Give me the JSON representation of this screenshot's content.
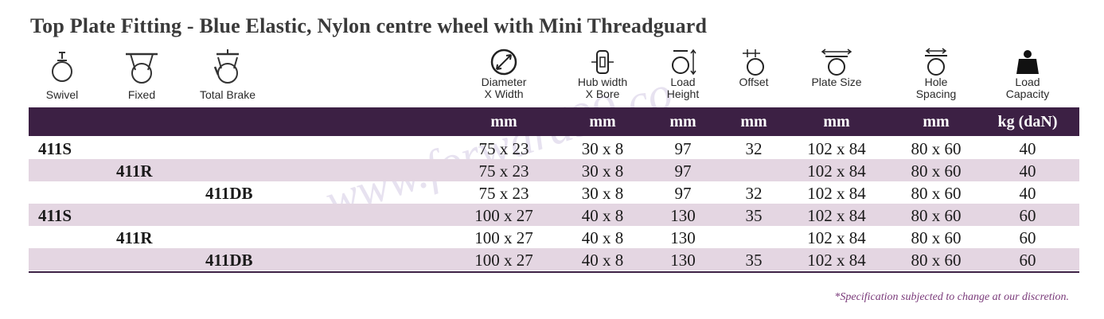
{
  "title": "Top Plate Fitting - Blue Elastic, Nylon centre wheel with Mini Threadguard",
  "type_icons": [
    {
      "label": "Swivel",
      "icon": "swivel-castor-icon"
    },
    {
      "label": "Fixed",
      "icon": "fixed-castor-icon"
    },
    {
      "label": "Total Brake",
      "icon": "total-brake-castor-icon"
    }
  ],
  "spec_headers": [
    {
      "line1": "Diameter",
      "line2": "X Width",
      "icon": "diameter-icon"
    },
    {
      "line1": "Hub width",
      "line2": "X Bore",
      "icon": "hub-width-icon"
    },
    {
      "line1": "Load",
      "line2": "Height",
      "icon": "load-height-icon"
    },
    {
      "line1": "Offset",
      "line2": "",
      "icon": "offset-icon"
    },
    {
      "line1": "Plate Size",
      "line2": "",
      "icon": "plate-size-icon"
    },
    {
      "line1": "Hole",
      "line2": "Spacing",
      "icon": "hole-spacing-icon"
    },
    {
      "line1": "Load",
      "line2": "Capacity",
      "icon": "weight-icon"
    }
  ],
  "units": [
    "mm",
    "mm",
    "mm",
    "mm",
    "mm",
    "mm",
    "kg (daN)"
  ],
  "rows": [
    {
      "code": "411S",
      "type": 0,
      "diameter": "75 x 23",
      "hub": "30 x 8",
      "height": "97",
      "offset": "32",
      "plate": "102 x 84",
      "hole": "80 x 60",
      "capacity": "40"
    },
    {
      "code": "411R",
      "type": 1,
      "diameter": "75 x 23",
      "hub": "30 x 8",
      "height": "97",
      "offset": "",
      "plate": "102 x 84",
      "hole": "80 x 60",
      "capacity": "40"
    },
    {
      "code": "411DB",
      "type": 2,
      "diameter": "75 x 23",
      "hub": "30 x 8",
      "height": "97",
      "offset": "32",
      "plate": "102 x 84",
      "hole": "80 x 60",
      "capacity": "40"
    },
    {
      "code": "411S",
      "type": 0,
      "diameter": "100 x 27",
      "hub": "40 x 8",
      "height": "130",
      "offset": "35",
      "plate": "102 x 84",
      "hole": "80 x 60",
      "capacity": "60"
    },
    {
      "code": "411R",
      "type": 1,
      "diameter": "100 x 27",
      "hub": "40 x 8",
      "height": "130",
      "offset": "",
      "plate": "102 x 84",
      "hole": "80 x 60",
      "capacity": "60"
    },
    {
      "code": "411DB",
      "type": 2,
      "diameter": "100 x 27",
      "hub": "40 x 8",
      "height": "130",
      "offset": "35",
      "plate": "102 x 84",
      "hole": "80 x 60",
      "capacity": "60"
    }
  ],
  "footnote": "*Specification subjected to change at our discretion.",
  "watermark": "www.forward99.co",
  "colors": {
    "band": "#3c2044",
    "row_shade": "#e4d6e2",
    "footnote": "#7a3a7a"
  }
}
